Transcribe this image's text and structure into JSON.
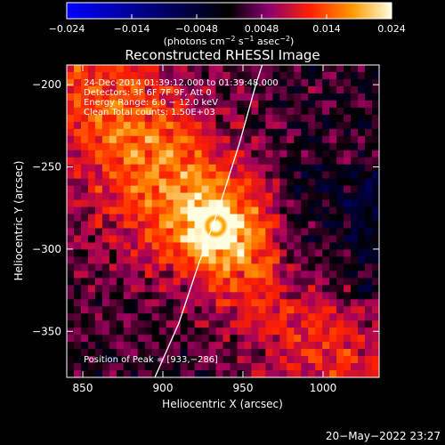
{
  "chart_data": {
    "type": "heatmap",
    "title": "Reconstructed RHESSI Image",
    "xlabel": "Heliocentric X (arcsec)",
    "ylabel": "Heliocentric Y (arcsec)",
    "xlim": [
      840,
      1035
    ],
    "ylim": [
      -378,
      -188
    ],
    "x_ticks": [
      850,
      900,
      950,
      1000
    ],
    "y_ticks": [
      -200,
      -250,
      -300,
      -350
    ],
    "colorbar": {
      "range": [
        -0.024,
        0.024
      ],
      "ticks": [
        "−0.024",
        "−0.014",
        "−0.0048",
        "0.0048",
        "0.014",
        "0.024"
      ],
      "tick_values": [
        -0.024,
        -0.0144,
        -0.0048,
        0.0048,
        0.0144,
        0.024
      ],
      "label": "(photons cm",
      "label_exp1": "−2",
      "label_mid": " s",
      "label_exp2": "−1",
      "label_mid2": " asec",
      "label_exp3": "−2",
      "label_end": ")"
    },
    "annotations": {
      "time": "24-Dec-2014 01:39:12.000 to 01:39:48.000",
      "detectors": "Detectors: 3F 6F 7F 9F, Att 0",
      "energy": "Energy Range: 6.0 − 12.0 keV",
      "clean": "Clean    Total counts: 1.50E+03",
      "peak": "Position of Peak = [933,−286]"
    },
    "peak": [
      933,
      -286
    ],
    "limb_curve": [
      [
        895,
        -378
      ],
      [
        910,
        -345
      ],
      [
        922,
        -310
      ],
      [
        935,
        -275
      ],
      [
        948,
        -235
      ],
      [
        958,
        -200
      ],
      [
        962,
        -188
      ]
    ],
    "colormap": [
      "#0000ff",
      "#000000",
      "#a00060",
      "#ff2000",
      "#ff9000",
      "#ffffe0"
    ]
  },
  "footer": {
    "timestamp": "20−May−2022 23:27"
  }
}
